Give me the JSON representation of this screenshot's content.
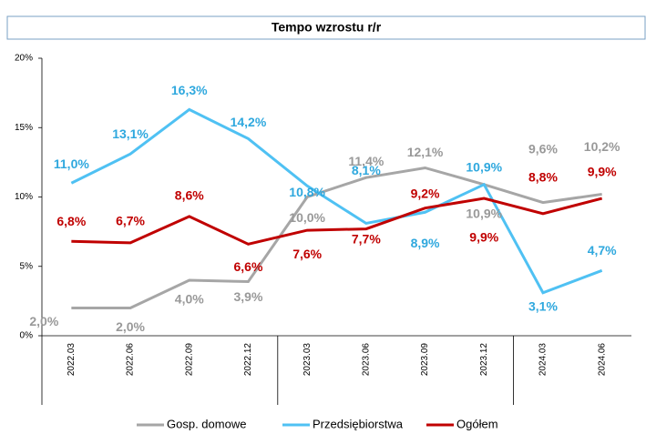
{
  "chart_data": {
    "type": "line",
    "title": "Tempo wzrostu r/r",
    "categories": [
      "2022.03",
      "2022.06",
      "2022.09",
      "2022.12",
      "2023.03",
      "2023.06",
      "2023.09",
      "2023.12",
      "2024.03",
      "2024.06"
    ],
    "series": [
      {
        "name": "Gosp. domowe",
        "color": "#a6a6a6",
        "values": [
          2.0,
          2.0,
          4.0,
          3.9,
          10.0,
          11.4,
          12.1,
          10.9,
          9.6,
          10.2
        ],
        "value_labels": [
          "2,0%",
          "2,0%",
          "4,0%",
          "3,9%",
          "10,0%",
          "11,4%",
          "12,1%",
          "10,9%",
          "9,6%",
          "10,2%"
        ]
      },
      {
        "name": "Przedsiębiorstwa",
        "color": "#4fc1f3",
        "values": [
          11.0,
          13.1,
          16.3,
          14.2,
          10.8,
          8.1,
          8.9,
          10.9,
          3.1,
          4.7
        ],
        "value_labels": [
          "11,0%",
          "13,1%",
          "16,3%",
          "14,2%",
          "10,8%",
          "8,1%",
          "8,9%",
          "10,9%",
          "3,1%",
          "4,7%"
        ]
      },
      {
        "name": "Ogółem",
        "color": "#c00000",
        "values": [
          6.8,
          6.7,
          8.6,
          6.6,
          7.6,
          7.7,
          9.2,
          9.9,
          8.8,
          9.9
        ],
        "value_labels": [
          "6,8%",
          "6,7%",
          "8,6%",
          "6,6%",
          "7,6%",
          "7,7%",
          "9,2%",
          "9,9%",
          "8,8%",
          "9,9%"
        ]
      }
    ],
    "ylim": [
      0,
      20
    ],
    "yticks": [
      {
        "value": 0,
        "label": "0%"
      },
      {
        "value": 5,
        "label": "5%"
      },
      {
        "value": 10,
        "label": "10%"
      },
      {
        "value": 15,
        "label": "15%"
      },
      {
        "value": 20,
        "label": "20%"
      }
    ],
    "legend": "bottom"
  }
}
